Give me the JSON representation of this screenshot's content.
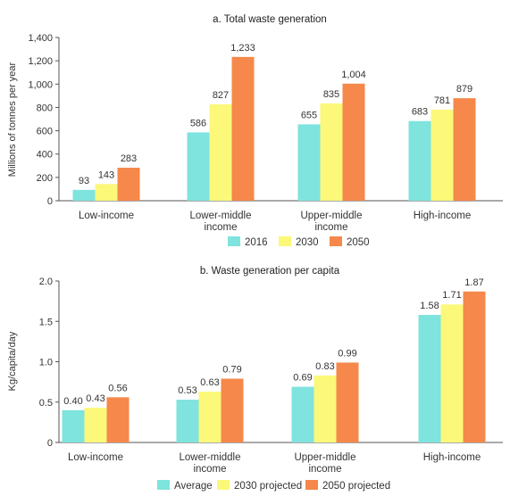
{
  "chart_data": [
    {
      "type": "bar",
      "title": "a. Total waste generation",
      "ylabel": "Millions of tonnes per year",
      "xlabel": "",
      "ylim": [
        0,
        1400
      ],
      "yticks": [
        "0",
        "200",
        "400",
        "600",
        "800",
        "1,000",
        "1,200",
        "1,400"
      ],
      "categories": [
        [
          "Low-income"
        ],
        [
          "Lower-middle",
          "income"
        ],
        [
          "Upper-middle",
          "income"
        ],
        [
          "High-income"
        ]
      ],
      "series": [
        {
          "name": "2016",
          "color": "#7fe3de",
          "values": [
            93,
            586,
            655,
            683
          ],
          "labels": [
            "93",
            "586",
            "655",
            "683"
          ]
        },
        {
          "name": "2030",
          "color": "#fbf87a",
          "values": [
            143,
            827,
            835,
            781
          ],
          "labels": [
            "143",
            "827",
            "835",
            "781"
          ]
        },
        {
          "name": "2050",
          "color": "#f5884a",
          "values": [
            283,
            1233,
            1004,
            879
          ],
          "labels": [
            "283",
            "1,233",
            "1,004",
            "879"
          ]
        }
      ],
      "legend": "bottom"
    },
    {
      "type": "bar",
      "title": "b. Waste generation per capita",
      "ylabel": "Kg/capita/day",
      "xlabel": "",
      "ylim": [
        0,
        2.0
      ],
      "yticks": [
        "0",
        "0.5",
        "1.0",
        "1.5",
        "2.0"
      ],
      "categories": [
        [
          "Low-income"
        ],
        [
          "Lower-middle",
          "income"
        ],
        [
          "Upper-middle",
          "income"
        ],
        [
          "High-income"
        ]
      ],
      "series": [
        {
          "name": "Average",
          "color": "#7fe3de",
          "values": [
            0.4,
            0.53,
            0.69,
            1.58
          ],
          "labels": [
            "0.40",
            "0.53",
            "0.69",
            "1.58"
          ]
        },
        {
          "name": "2030 projected",
          "color": "#fbf87a",
          "values": [
            0.43,
            0.63,
            0.83,
            1.71
          ],
          "labels": [
            "0.43",
            "0.63",
            "0.83",
            "1.71"
          ]
        },
        {
          "name": "2050 projected",
          "color": "#f5884a",
          "values": [
            0.56,
            0.79,
            0.99,
            1.87
          ],
          "labels": [
            "0.56",
            "0.79",
            "0.99",
            "1.87"
          ]
        }
      ],
      "legend": "bottom"
    }
  ]
}
